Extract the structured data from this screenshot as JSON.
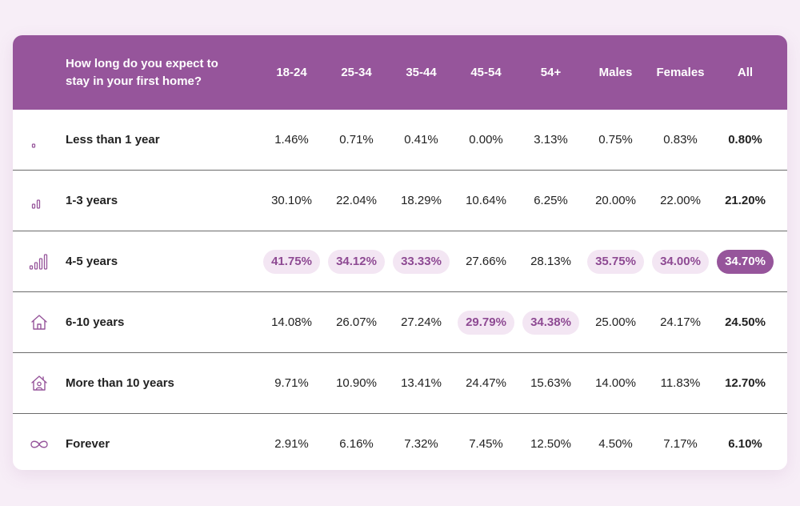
{
  "chart_data": {
    "type": "table",
    "title_lines": [
      "How long do you expect to",
      "stay in your first home?"
    ],
    "columns": [
      "18-24",
      "25-34",
      "35-44",
      "45-54",
      "54+",
      "Males",
      "Females",
      "All"
    ],
    "rows": [
      {
        "label": "Less than 1 year",
        "icon": "signal-1-icon",
        "values": [
          "1.46%",
          "0.71%",
          "0.41%",
          "0.00%",
          "3.13%",
          "0.75%",
          "0.83%",
          "0.80%"
        ],
        "highlight": []
      },
      {
        "label": "1-3 years",
        "icon": "signal-2-icon",
        "values": [
          "30.10%",
          "22.04%",
          "18.29%",
          "10.64%",
          "6.25%",
          "20.00%",
          "22.00%",
          "21.20%"
        ],
        "highlight": []
      },
      {
        "label": "4-5 years",
        "icon": "signal-4-icon",
        "values": [
          "41.75%",
          "34.12%",
          "33.33%",
          "27.66%",
          "28.13%",
          "35.75%",
          "34.00%",
          "34.70%"
        ],
        "highlight": [
          0,
          1,
          2,
          5,
          6,
          7
        ]
      },
      {
        "label": "6-10 years",
        "icon": "house-icon",
        "values": [
          "14.08%",
          "26.07%",
          "27.24%",
          "29.79%",
          "34.38%",
          "25.00%",
          "24.17%",
          "24.50%"
        ],
        "highlight": [
          3,
          4
        ]
      },
      {
        "label": "More than 10 years",
        "icon": "house-person-icon",
        "values": [
          "9.71%",
          "10.90%",
          "13.41%",
          "24.47%",
          "15.63%",
          "14.00%",
          "11.83%",
          "12.70%"
        ],
        "highlight": []
      },
      {
        "label": "Forever",
        "icon": "infinity-icon",
        "values": [
          "2.91%",
          "6.16%",
          "7.32%",
          "7.45%",
          "12.50%",
          "4.50%",
          "7.17%",
          "6.10%"
        ],
        "highlight": []
      }
    ]
  },
  "colors": {
    "accent": "#96559b",
    "highlight_bg": "#f3e6f3",
    "highlight_text": "#8e4a93",
    "page_bg": "#f7eef7"
  }
}
